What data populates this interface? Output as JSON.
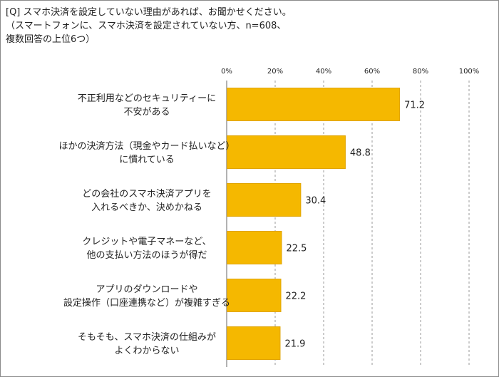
{
  "question": {
    "line1": "[Q] スマホ決済を設定していない理由があれば、お聞かせください。",
    "line2": "（スマートフォンに、スマホ決済を設定されていない方、n=608、",
    "line3": "複数回答の上位6つ）"
  },
  "colors": {
    "bar": "#f5b800",
    "bar_edge": "#e0a400",
    "grid": "#999999"
  },
  "chart_data": {
    "type": "bar",
    "orientation": "horizontal",
    "xlim": [
      0,
      100
    ],
    "ticks": [
      "0%",
      "20%",
      "40%",
      "60%",
      "80%",
      "100%"
    ],
    "grid": true,
    "categories": [
      [
        "不正利用などのセキュリティーに",
        "不安がある"
      ],
      [
        "ほかの決済方法（現金やカード払いなど）",
        "に慣れている"
      ],
      [
        "どの会社のスマホ決済アプリを",
        "入れるべきか、決めかねる"
      ],
      [
        "クレジットや電子マネーなど、",
        "他の支払い方法のほうが得だ"
      ],
      [
        "アプリのダウンロードや",
        "設定操作（口座連携など）が複雑すぎる"
      ],
      [
        "そもそも、スマホ決済の仕組みが",
        "よくわからない"
      ]
    ],
    "values": [
      71.2,
      48.8,
      30.4,
      22.5,
      22.2,
      21.9
    ],
    "value_labels": [
      "71.2",
      "48.8",
      "30.4",
      "22.5",
      "22.2",
      "21.9"
    ]
  }
}
